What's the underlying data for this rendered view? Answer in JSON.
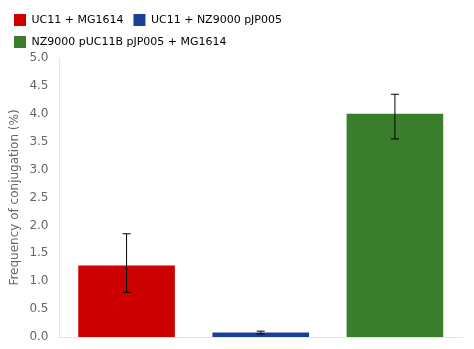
{
  "chart_data": {
    "type": "bar",
    "categories": [
      "UC11 + MG1614",
      "UC11 + NZ9000 pJP005",
      "NZ9000 pUC11B pJP005 + MG1614"
    ],
    "values": [
      1.28,
      0.08,
      4.0
    ],
    "errors_upper": [
      0.57,
      0.025,
      0.35
    ],
    "errors_lower": [
      0.48,
      0.025,
      0.45
    ],
    "colors": [
      "#cc0000",
      "#1a3f99",
      "#3a7d2c"
    ],
    "ylabel": "Frequency of conjugation (%)",
    "ylim": [
      0,
      5.0
    ],
    "yticks": [
      {
        "value": 0,
        "label": "0.0"
      },
      0.5,
      {
        "value": 1,
        "label": "1.0"
      },
      1.5,
      {
        "value": 2,
        "label": "2.0"
      },
      2.5,
      {
        "value": 3,
        "label": "3.0"
      },
      3.5,
      {
        "value": 4,
        "label": "4.0"
      },
      4.5,
      {
        "value": 5,
        "label": "5.0"
      }
    ],
    "legend": "upper left",
    "grid": false,
    "tick_labels": "y"
  }
}
